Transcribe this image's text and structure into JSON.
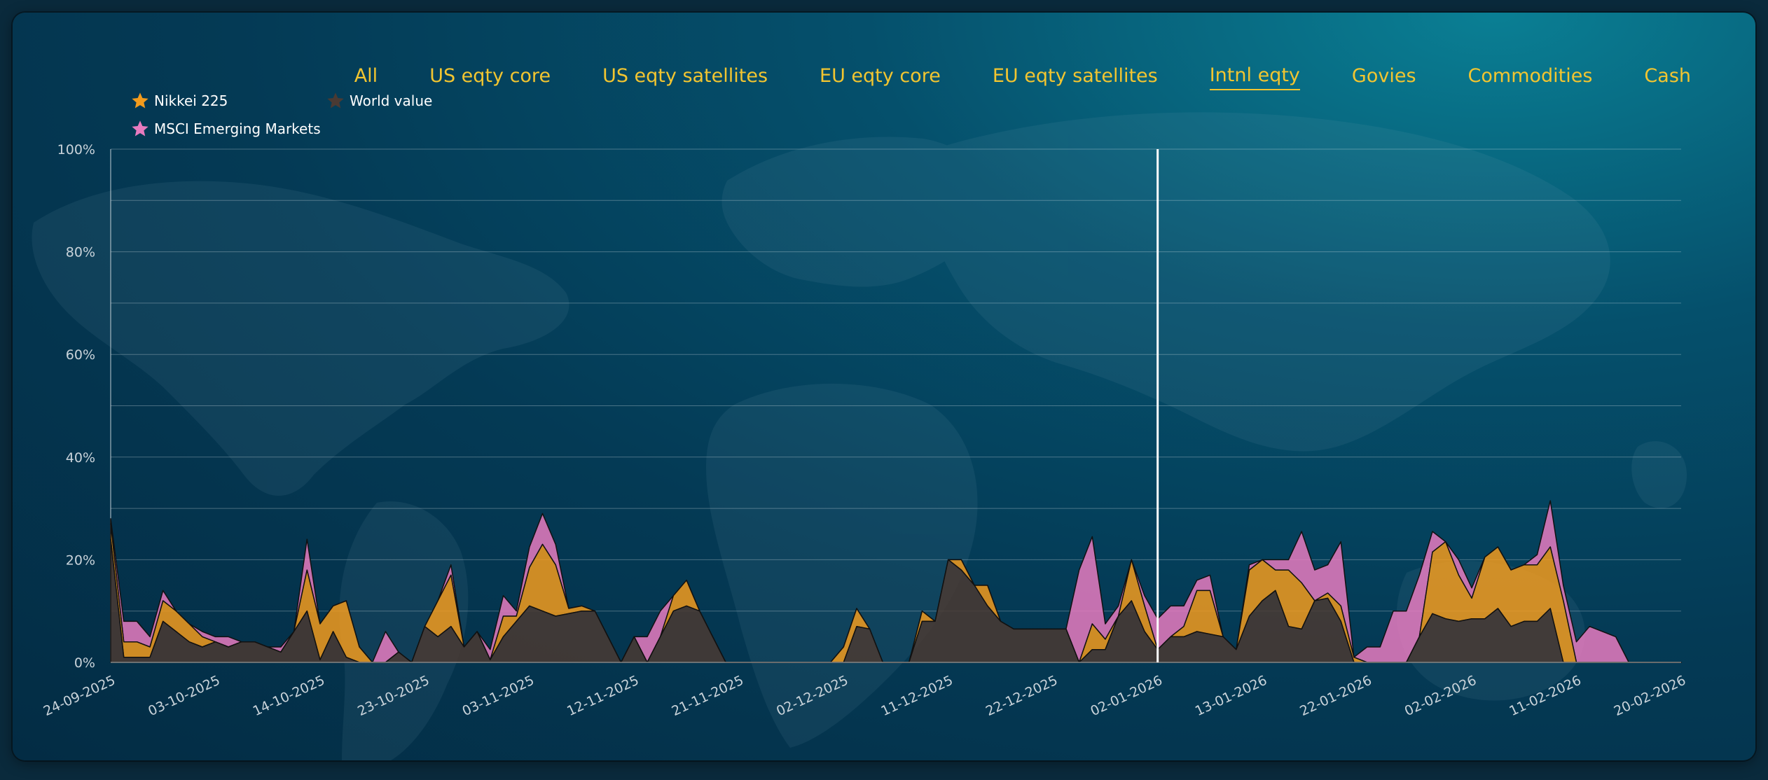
{
  "tabs": [
    {
      "label": "All",
      "active": false
    },
    {
      "label": "US eqty core",
      "active": false
    },
    {
      "label": "US eqty satellites",
      "active": false
    },
    {
      "label": "EU eqty core",
      "active": false
    },
    {
      "label": "EU eqty satellites",
      "active": false
    },
    {
      "label": "Intnl eqty",
      "active": true
    },
    {
      "label": "Govies",
      "active": false
    },
    {
      "label": "Commodities",
      "active": false
    },
    {
      "label": "Cash",
      "active": false
    }
  ],
  "legend": [
    {
      "label": "Nikkei 225",
      "color": "#f29b1d",
      "icon": "star-icon"
    },
    {
      "label": "World value",
      "color": "#4a3a33",
      "icon": "star-icon"
    },
    {
      "label": "MSCI Emerging Markets",
      "color": "#e87bbf",
      "icon": "star-icon"
    }
  ],
  "chart_data": {
    "type": "area",
    "stacked": true,
    "yticks": [
      "0%",
      "20%",
      "40%",
      "60%",
      "80%",
      "100%"
    ],
    "ylim": [
      0,
      100
    ],
    "grid": true,
    "xlabels": [
      "24-09-2025",
      "03-10-2025",
      "14-10-2025",
      "23-10-2025",
      "03-11-2025",
      "12-11-2025",
      "21-11-2025",
      "02-12-2025",
      "11-12-2025",
      "22-12-2025",
      "02-01-2026",
      "13-01-2026",
      "22-01-2026",
      "02-02-2026",
      "11-02-2026",
      "20-02-2026"
    ],
    "marker_at_label": "02-01-2026",
    "num_points": 121,
    "series": [
      {
        "name": "World value",
        "color": "#4a3a33",
        "values": [
          24,
          1,
          1,
          1,
          8,
          6,
          4,
          3,
          4,
          3,
          4,
          4,
          3,
          2,
          6,
          10,
          0.5,
          6,
          1,
          0,
          0,
          0,
          2,
          0,
          7,
          5,
          7,
          3,
          6,
          0.5,
          5,
          8,
          11,
          10,
          9,
          9.5,
          10,
          10,
          5,
          0,
          5,
          0,
          5,
          10,
          11,
          10,
          5,
          0,
          0,
          0,
          0,
          0,
          0,
          0,
          0,
          0,
          0,
          7,
          6.5,
          0,
          0,
          0,
          8,
          8,
          20,
          18,
          15,
          11,
          8,
          6.5,
          6.5,
          6.5,
          6.5,
          6.5,
          0,
          2.5,
          2.5,
          9,
          12,
          6,
          2.5,
          5,
          5,
          6,
          5.5,
          5,
          2.5,
          9,
          12,
          14,
          7,
          6.5,
          12,
          12.5,
          8,
          0,
          0,
          0,
          0,
          0,
          5,
          9.5,
          8.5,
          8,
          8.5,
          8.5,
          10.5,
          7,
          8,
          8,
          10.5,
          0,
          0,
          0,
          0,
          0,
          0,
          0,
          0,
          0,
          0,
          0,
          0
        ]
      },
      {
        "name": "Nikkei 225",
        "color": "#f29b1d",
        "values": [
          3,
          3,
          3,
          2,
          4,
          4,
          3.5,
          2,
          0,
          0,
          0,
          0,
          0,
          0,
          0,
          8,
          7,
          5,
          11,
          3,
          0,
          0,
          0,
          0,
          0,
          7,
          10,
          0,
          0,
          0,
          4,
          1,
          7.5,
          13,
          10,
          1,
          1,
          0,
          0,
          0,
          0,
          0,
          0,
          3,
          5,
          0,
          0,
          0,
          0,
          0,
          0,
          0,
          0,
          0,
          0,
          0,
          3,
          3.5,
          0,
          0,
          0,
          0,
          2,
          0,
          0,
          2,
          0,
          4,
          0,
          0,
          0,
          0,
          0,
          0,
          0,
          5,
          2,
          0,
          8,
          5,
          0,
          0,
          2,
          8,
          8.5,
          0,
          0,
          9,
          8,
          4,
          11,
          9,
          0,
          1,
          3,
          1,
          0,
          0,
          0,
          0,
          0,
          12,
          15,
          9,
          4,
          12,
          12,
          11,
          11,
          11,
          12,
          12,
          0,
          0,
          0,
          0,
          0,
          0,
          0,
          0,
          0,
          0,
          0
        ]
      },
      {
        "name": "MSCI Emerging Markets",
        "color": "#e87bbf",
        "values": [
          1,
          4,
          4,
          2,
          2,
          0,
          0,
          1,
          1,
          2,
          0,
          0,
          0,
          1,
          0,
          6,
          0,
          0,
          0,
          0,
          0,
          6,
          0,
          0,
          0,
          0,
          2,
          0,
          0,
          2,
          4,
          1,
          4,
          6,
          4,
          0,
          0,
          0,
          0,
          0,
          0,
          5,
          5,
          0,
          0,
          0,
          0,
          0,
          0,
          0,
          0,
          0,
          0,
          0,
          0,
          0,
          0,
          0,
          0,
          0,
          0,
          0,
          0,
          0,
          0,
          0,
          0,
          0,
          0,
          0,
          0,
          0,
          0,
          0,
          18,
          17,
          3,
          2,
          0,
          2,
          6,
          6,
          4,
          2,
          3,
          0,
          0,
          1,
          0,
          2,
          2,
          10,
          6,
          5.5,
          12.5,
          0,
          3,
          3,
          10,
          10,
          12,
          4,
          0,
          3,
          2,
          0,
          0,
          0,
          0,
          2,
          9,
          3,
          4,
          7,
          6,
          5,
          0,
          0,
          0,
          0,
          0
        ]
      }
    ]
  }
}
